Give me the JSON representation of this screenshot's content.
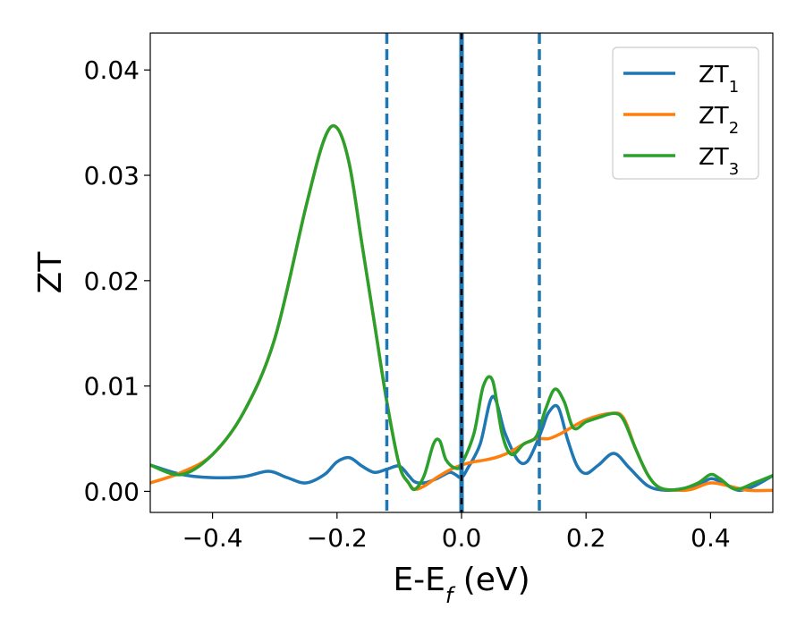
{
  "chart_data": {
    "type": "line",
    "xlabel": "E-E",
    "xlabel_sub": "f",
    "xlabel_unit": "(eV)",
    "ylabel": "ZT",
    "xlim": [
      -0.5,
      0.5
    ],
    "ylim": [
      -0.002,
      0.0435
    ],
    "xticks": [
      -0.4,
      -0.2,
      0.0,
      0.2,
      0.4
    ],
    "xtick_labels": [
      "−0.4",
      "−0.2",
      "0.0",
      "0.2",
      "0.4"
    ],
    "yticks": [
      0.0,
      0.01,
      0.02,
      0.03,
      0.04
    ],
    "ytick_labels": [
      "0.00",
      "0.01",
      "0.02",
      "0.03",
      "0.04"
    ],
    "legend_position": "top-right",
    "vlines": [
      {
        "x": -0.12,
        "style": "dashed",
        "color": "#1f77b4"
      },
      {
        "x": 0.0,
        "style": "solid",
        "color": "#1f77b4"
      },
      {
        "x": 0.0,
        "style": "dashed",
        "color": "#000000"
      },
      {
        "x": 0.125,
        "style": "dashed",
        "color": "#1f77b4"
      }
    ],
    "series": [
      {
        "name": "ZT",
        "sub": "1",
        "color": "#1f77b4",
        "x": [
          -0.5,
          -0.45,
          -0.4,
          -0.35,
          -0.31,
          -0.28,
          -0.25,
          -0.22,
          -0.2,
          -0.18,
          -0.16,
          -0.14,
          -0.12,
          -0.1,
          -0.085,
          -0.075,
          -0.06,
          -0.04,
          -0.02,
          -0.01,
          0.0,
          0.01,
          0.03,
          0.05,
          0.07,
          0.09,
          0.105,
          0.12,
          0.13,
          0.14,
          0.155,
          0.17,
          0.185,
          0.2,
          0.22,
          0.245,
          0.27,
          0.3,
          0.33,
          0.36,
          0.38,
          0.4,
          0.42,
          0.445,
          0.47,
          0.5
        ],
        "y": [
          0.0025,
          0.0016,
          0.0013,
          0.0014,
          0.0019,
          0.0013,
          0.0008,
          0.0016,
          0.0028,
          0.0032,
          0.0024,
          0.0018,
          0.0021,
          0.0024,
          0.0015,
          0.0009,
          0.0008,
          0.0012,
          0.0018,
          0.0016,
          0.0013,
          0.0022,
          0.0045,
          0.009,
          0.0055,
          0.003,
          0.0028,
          0.0045,
          0.006,
          0.0075,
          0.008,
          0.005,
          0.0025,
          0.0017,
          0.0025,
          0.0036,
          0.0022,
          0.0005,
          0.0001,
          0.0003,
          0.0005,
          0.0012,
          0.0008,
          0.0001,
          0.0005,
          0.0015
        ]
      },
      {
        "name": "ZT",
        "sub": "2",
        "color": "#ff7f0e",
        "x": [
          -0.5,
          -0.45,
          -0.4,
          -0.35,
          -0.3,
          -0.25,
          -0.22,
          -0.2,
          -0.18,
          -0.16,
          -0.14,
          -0.12,
          -0.1,
          -0.085,
          -0.075,
          -0.06,
          -0.04,
          -0.02,
          0.0,
          0.02,
          0.04,
          0.06,
          0.08,
          0.1,
          0.12,
          0.14,
          0.16,
          0.2,
          0.24,
          0.26,
          0.28,
          0.3,
          0.32,
          0.35,
          0.37,
          0.4,
          0.43,
          0.46,
          0.5
        ],
        "y": [
          0.0008,
          0.0018,
          0.0035,
          0.0075,
          0.0145,
          0.027,
          0.0335,
          0.0345,
          0.031,
          0.0235,
          0.016,
          0.0085,
          0.0025,
          0.0008,
          0.0002,
          0.0005,
          0.0013,
          0.002,
          0.0025,
          0.0028,
          0.003,
          0.0033,
          0.0038,
          0.0045,
          0.005,
          0.005,
          0.0055,
          0.0068,
          0.0074,
          0.007,
          0.004,
          0.0015,
          0.0003,
          0.0001,
          0.0002,
          0.0008,
          0.0005,
          0.0001,
          0.0001
        ]
      },
      {
        "name": "ZT",
        "sub": "3",
        "color": "#2ca02c",
        "x": [
          -0.5,
          -0.45,
          -0.4,
          -0.35,
          -0.3,
          -0.25,
          -0.22,
          -0.2,
          -0.18,
          -0.16,
          -0.14,
          -0.12,
          -0.1,
          -0.085,
          -0.075,
          -0.06,
          -0.045,
          -0.035,
          -0.025,
          -0.01,
          0.0,
          0.02,
          0.035,
          0.05,
          0.065,
          0.08,
          0.1,
          0.12,
          0.135,
          0.15,
          0.165,
          0.18,
          0.2,
          0.22,
          0.245,
          0.26,
          0.28,
          0.3,
          0.32,
          0.35,
          0.38,
          0.4,
          0.415,
          0.44,
          0.47,
          0.5
        ],
        "y": [
          0.0025,
          0.0016,
          0.0035,
          0.0075,
          0.0145,
          0.027,
          0.0335,
          0.0345,
          0.031,
          0.0235,
          0.016,
          0.0085,
          0.0025,
          0.0008,
          0.0002,
          0.0015,
          0.0045,
          0.0048,
          0.003,
          0.0022,
          0.0026,
          0.0055,
          0.01,
          0.0105,
          0.0055,
          0.0035,
          0.0045,
          0.0052,
          0.0078,
          0.0097,
          0.0085,
          0.006,
          0.0066,
          0.007,
          0.0074,
          0.0068,
          0.004,
          0.0015,
          0.0003,
          0.0002,
          0.0008,
          0.0016,
          0.0012,
          0.0002,
          0.0008,
          0.0015
        ]
      }
    ]
  }
}
